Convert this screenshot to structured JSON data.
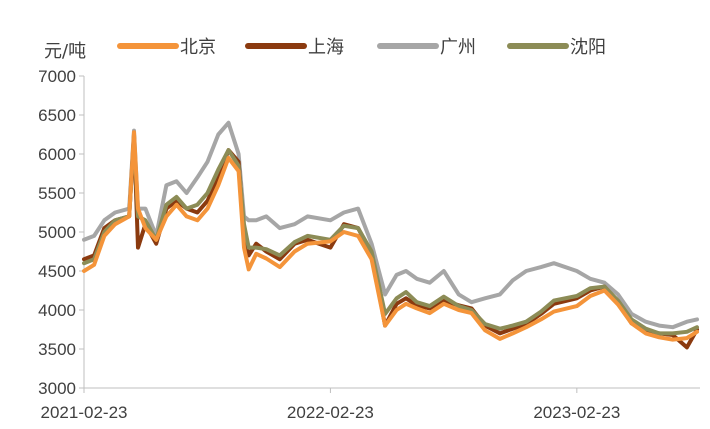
{
  "chart_data": {
    "type": "line",
    "ylabel": "元/吨",
    "ylim": [
      3000,
      7000
    ],
    "yticks": [
      3000,
      3500,
      4000,
      4500,
      5000,
      5500,
      6000,
      6500,
      7000
    ],
    "x_tick_labels": [
      "2021-02-23",
      "2022-02-23",
      "2023-02-23"
    ],
    "x_range": [
      "2021-02-23",
      "2023-08-20"
    ],
    "legend_position": "top",
    "grid": false,
    "colors": {
      "北京": "#F4943A",
      "上海": "#8B3A0F",
      "广州": "#A6A6A6",
      "沈阳": "#8C8C56"
    },
    "series": [
      {
        "name": "北京",
        "x": [
          "2021-02-23",
          "2021-03-10",
          "2021-03-25",
          "2021-04-10",
          "2021-05-01",
          "2021-05-08",
          "2021-05-14",
          "2021-05-25",
          "2021-06-10",
          "2021-06-25",
          "2021-07-10",
          "2021-07-25",
          "2021-08-10",
          "2021-08-25",
          "2021-09-10",
          "2021-09-25",
          "2021-10-10",
          "2021-10-18",
          "2021-10-25",
          "2021-11-05",
          "2021-11-20",
          "2021-12-10",
          "2022-01-01",
          "2022-01-20",
          "2022-02-23",
          "2022-03-15",
          "2022-04-05",
          "2022-04-25",
          "2022-05-15",
          "2022-06-01",
          "2022-06-15",
          "2022-07-01",
          "2022-07-20",
          "2022-08-10",
          "2022-09-01",
          "2022-09-20",
          "2022-10-10",
          "2022-11-01",
          "2022-11-20",
          "2022-12-10",
          "2023-01-01",
          "2023-01-20",
          "2023-02-23",
          "2023-03-15",
          "2023-04-05",
          "2023-04-25",
          "2023-05-15",
          "2023-06-05",
          "2023-06-25",
          "2023-07-15",
          "2023-08-05",
          "2023-08-20"
        ],
        "values": [
          4500,
          4580,
          4950,
          5100,
          5200,
          6280,
          5300,
          5050,
          4900,
          5200,
          5350,
          5200,
          5150,
          5300,
          5600,
          5950,
          5780,
          4800,
          4520,
          4720,
          4660,
          4550,
          4750,
          4850,
          4880,
          5000,
          4950,
          4650,
          3800,
          4000,
          4080,
          4020,
          3960,
          4080,
          4000,
          3960,
          3740,
          3630,
          3700,
          3780,
          3880,
          3980,
          4050,
          4180,
          4250,
          4070,
          3830,
          3700,
          3650,
          3620,
          3640,
          3720
        ]
      },
      {
        "name": "上海",
        "x": [
          "2021-02-23",
          "2021-03-10",
          "2021-03-25",
          "2021-04-10",
          "2021-05-01",
          "2021-05-08",
          "2021-05-14",
          "2021-05-25",
          "2021-06-10",
          "2021-06-25",
          "2021-07-10",
          "2021-07-25",
          "2021-08-10",
          "2021-08-25",
          "2021-09-10",
          "2021-09-25",
          "2021-10-10",
          "2021-10-18",
          "2021-10-25",
          "2021-11-05",
          "2021-11-20",
          "2021-12-10",
          "2022-01-01",
          "2022-01-20",
          "2022-02-23",
          "2022-03-15",
          "2022-04-05",
          "2022-04-25",
          "2022-05-15",
          "2022-06-01",
          "2022-06-15",
          "2022-07-01",
          "2022-07-20",
          "2022-08-10",
          "2022-09-01",
          "2022-09-20",
          "2022-10-10",
          "2022-11-01",
          "2022-11-20",
          "2022-12-10",
          "2023-01-01",
          "2023-01-20",
          "2023-02-23",
          "2023-03-15",
          "2023-04-05",
          "2023-04-25",
          "2023-05-15",
          "2023-06-05",
          "2023-06-25",
          "2023-07-15",
          "2023-08-05",
          "2023-08-20"
        ],
        "values": [
          4650,
          4700,
          5050,
          5150,
          5200,
          6250,
          4800,
          5100,
          4850,
          5300,
          5400,
          5300,
          5250,
          5400,
          5700,
          6050,
          5900,
          5000,
          4700,
          4850,
          4750,
          4650,
          4850,
          4900,
          4800,
          5100,
          5050,
          4720,
          3800,
          4080,
          4150,
          4060,
          4020,
          4120,
          4060,
          4020,
          3800,
          3700,
          3760,
          3820,
          3950,
          4080,
          4150,
          4250,
          4300,
          4100,
          3830,
          3720,
          3700,
          3680,
          3520,
          3750
        ]
      },
      {
        "name": "广州",
        "x": [
          "2021-02-23",
          "2021-03-10",
          "2021-03-25",
          "2021-04-10",
          "2021-05-01",
          "2021-05-08",
          "2021-05-14",
          "2021-05-25",
          "2021-06-10",
          "2021-06-25",
          "2021-07-10",
          "2021-07-25",
          "2021-08-10",
          "2021-08-25",
          "2021-09-10",
          "2021-09-25",
          "2021-10-10",
          "2021-10-18",
          "2021-10-25",
          "2021-11-05",
          "2021-11-20",
          "2021-12-10",
          "2022-01-01",
          "2022-01-20",
          "2022-02-23",
          "2022-03-15",
          "2022-04-05",
          "2022-04-25",
          "2022-05-15",
          "2022-06-01",
          "2022-06-15",
          "2022-07-01",
          "2022-07-20",
          "2022-08-10",
          "2022-09-01",
          "2022-09-20",
          "2022-10-10",
          "2022-11-01",
          "2022-11-20",
          "2022-12-10",
          "2023-01-01",
          "2023-01-20",
          "2023-02-23",
          "2023-03-15",
          "2023-04-05",
          "2023-04-25",
          "2023-05-15",
          "2023-06-05",
          "2023-06-25",
          "2023-07-15",
          "2023-08-05",
          "2023-08-20"
        ],
        "values": [
          4900,
          4950,
          5150,
          5250,
          5300,
          6300,
          5300,
          5300,
          4950,
          5600,
          5650,
          5500,
          5700,
          5900,
          6250,
          6400,
          6000,
          5200,
          5150,
          5150,
          5200,
          5050,
          5100,
          5200,
          5150,
          5250,
          5300,
          4850,
          4200,
          4450,
          4500,
          4400,
          4350,
          4500,
          4200,
          4100,
          4150,
          4200,
          4380,
          4500,
          4550,
          4600,
          4500,
          4400,
          4350,
          4200,
          3950,
          3850,
          3800,
          3780,
          3850,
          3880
        ]
      },
      {
        "name": "沈阳",
        "x": [
          "2021-02-23",
          "2021-03-10",
          "2021-03-25",
          "2021-04-10",
          "2021-05-01",
          "2021-05-08",
          "2021-05-14",
          "2021-05-25",
          "2021-06-10",
          "2021-06-25",
          "2021-07-10",
          "2021-07-25",
          "2021-08-10",
          "2021-08-25",
          "2021-09-10",
          "2021-09-25",
          "2021-10-10",
          "2021-10-18",
          "2021-10-25",
          "2021-11-05",
          "2021-11-20",
          "2021-12-10",
          "2022-01-01",
          "2022-01-20",
          "2022-02-23",
          "2022-03-15",
          "2022-04-05",
          "2022-04-25",
          "2022-05-15",
          "2022-06-01",
          "2022-06-15",
          "2022-07-01",
          "2022-07-20",
          "2022-08-10",
          "2022-09-01",
          "2022-09-20",
          "2022-10-10",
          "2022-11-01",
          "2022-11-20",
          "2022-12-10",
          "2023-01-01",
          "2023-01-20",
          "2023-02-23",
          "2023-03-15",
          "2023-04-05",
          "2023-04-25",
          "2023-05-15",
          "2023-06-05",
          "2023-06-25",
          "2023-07-15",
          "2023-08-05",
          "2023-08-20"
        ],
        "values": [
          4600,
          4650,
          5000,
          5150,
          5200,
          6230,
          5200,
          5150,
          4900,
          5350,
          5450,
          5300,
          5350,
          5500,
          5800,
          6050,
          5850,
          5100,
          4800,
          4800,
          4780,
          4700,
          4870,
          4950,
          4900,
          5080,
          5050,
          4750,
          3950,
          4150,
          4230,
          4100,
          4050,
          4170,
          4050,
          4000,
          3820,
          3760,
          3800,
          3850,
          3980,
          4120,
          4180,
          4280,
          4300,
          4120,
          3880,
          3760,
          3700,
          3700,
          3720,
          3780
        ]
      }
    ]
  }
}
